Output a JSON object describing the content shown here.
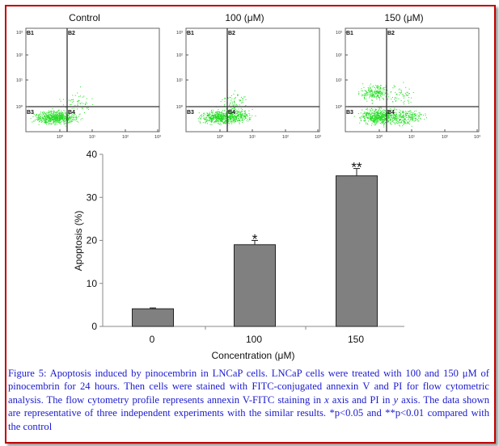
{
  "flow_panels": [
    {
      "title": "Control",
      "quadrants": [
        "B1",
        "B2",
        "B3",
        "B4"
      ]
    },
    {
      "title": "100 (μM)",
      "quadrants": [
        "B1",
        "B2",
        "B3",
        "B4"
      ]
    },
    {
      "title": "150 (μM)",
      "quadrants": [
        "B1",
        "B2",
        "B3",
        "B4"
      ]
    }
  ],
  "flow_axes": {
    "x_ticks": [
      "10⁰",
      "10¹",
      "10²",
      "10³"
    ],
    "y_ticks": [
      "10³",
      "10²",
      "10¹",
      "10⁰"
    ],
    "dot_color": "#22dd22"
  },
  "chart_data": {
    "type": "bar",
    "categories": [
      "0",
      "100",
      "150"
    ],
    "values": [
      4.1,
      19,
      35
    ],
    "errors": [
      0.2,
      1.0,
      1.7
    ],
    "significance": [
      "",
      "*",
      "**"
    ],
    "xlabel": "Concentration (μM)",
    "ylabel": "Apoptosis (%)",
    "ylim": [
      0,
      40
    ],
    "yticks": [
      "0",
      "10",
      "20",
      "30",
      "40"
    ],
    "bar_color": "#808080",
    "grid": false
  },
  "caption": {
    "p1": "Figure 5: Apoptosis induced by pinocembrin in LNCaP cells. LNCaP cells were treated with 100 and 150 μM of pinocembrin for 24 hours. Then cells were stained with FITC-conjugated annexin V and PI for flow cytometric analysis. The flow cytometry profile represents annexin V-FITC staining in ",
    "x": "x",
    "p2": " axis and PI in ",
    "y": "y",
    "p3": " axis. The data shown are representative of three independent experiments with the similar results. *p<0.05 and **p<0.01 compared with the control"
  },
  "border_color": "#c00000",
  "caption_color": "#1a1ad0"
}
